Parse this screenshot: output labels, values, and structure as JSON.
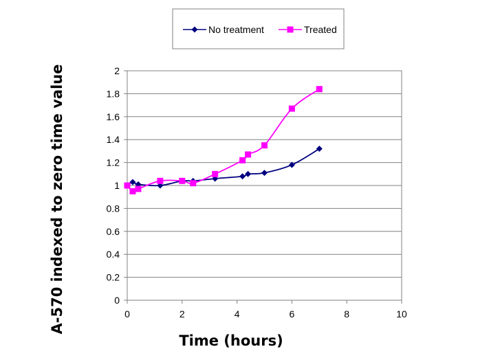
{
  "chart_data": {
    "type": "line",
    "title": "",
    "xlabel": "Time (hours)",
    "ylabel": "A-570 indexed to zero time value",
    "xlim": [
      0,
      10
    ],
    "ylim": [
      0,
      2
    ],
    "x_ticks": [
      "0",
      "2",
      "4",
      "6",
      "8",
      "10"
    ],
    "y_ticks": [
      "0",
      "0.2",
      "0.4",
      "0.6",
      "0.8",
      "1",
      "1.2",
      "1.4",
      "1.6",
      "1.8",
      "2"
    ],
    "grid": "horizontal",
    "legend_position": "top",
    "series": [
      {
        "name": "No treatment",
        "color": "#000080",
        "marker": "diamond",
        "x": [
          0,
          0.2,
          0.4,
          1.2,
          2,
          2.4,
          3.2,
          4.2,
          4.4,
          5,
          6,
          7
        ],
        "y": [
          1.0,
          1.03,
          1.01,
          1.0,
          1.04,
          1.04,
          1.06,
          1.08,
          1.1,
          1.11,
          1.18,
          1.32
        ]
      },
      {
        "name": "Treated",
        "color": "#FF00FF",
        "marker": "square",
        "x": [
          0,
          0.2,
          0.4,
          1.2,
          2,
          2.4,
          3.2,
          4.2,
          4.4,
          5,
          6,
          7
        ],
        "y": [
          1.0,
          0.95,
          0.97,
          1.04,
          1.04,
          1.02,
          1.1,
          1.22,
          1.27,
          1.35,
          1.67,
          1.84
        ]
      }
    ]
  }
}
